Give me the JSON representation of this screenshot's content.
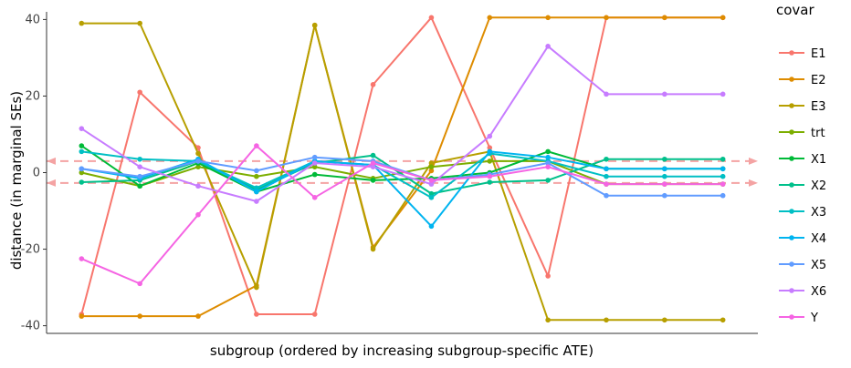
{
  "chart_data": {
    "type": "line",
    "xlabel": "subgroup (ordered by increasing subgroup-specific ATE)",
    "ylabel": "distance (in marginal SEs)",
    "x": [
      1,
      2,
      3,
      4,
      5,
      6,
      7,
      8,
      9,
      10,
      11,
      12
    ],
    "ylim": [
      -42,
      42
    ],
    "yticks": [
      -40,
      -20,
      0,
      20,
      40
    ],
    "grid": false,
    "reference_lines": [
      3,
      -2.7
    ],
    "reference_line_color": "#f4a3a3",
    "legend_title": "covar",
    "legend_position": "right",
    "series": [
      {
        "name": "E1",
        "color": "#F8766D",
        "values": [
          -37,
          21,
          6.5,
          -37,
          -37,
          23,
          40.5,
          6.5,
          -27,
          40.5,
          40.5,
          40.5
        ]
      },
      {
        "name": "E2",
        "color": "#DE8C00",
        "values": [
          -37.5,
          -37.5,
          -37.5,
          -29.5,
          38.5,
          -19.5,
          0.5,
          40.5,
          40.5,
          40.5,
          40.5,
          40.5
        ]
      },
      {
        "name": "E3",
        "color": "#B79F00",
        "values": [
          39,
          39,
          5,
          -30,
          38.5,
          -20,
          2.5,
          5.5,
          -38.5,
          -38.5,
          -38.5,
          -38.5
        ]
      },
      {
        "name": "trt",
        "color": "#7CAE00",
        "values": [
          0,
          -3.5,
          1.5,
          -1,
          1.5,
          -1.5,
          1.5,
          3,
          3,
          -3,
          -3,
          -3
        ]
      },
      {
        "name": "X1",
        "color": "#00BA38",
        "values": [
          7,
          -3.5,
          2.5,
          -5,
          -0.5,
          -2,
          -1.5,
          0,
          5.5,
          1,
          1,
          1
        ]
      },
      {
        "name": "X2",
        "color": "#00C08B",
        "values": [
          -2.5,
          -2,
          3,
          -4.5,
          2.5,
          4.5,
          -5.5,
          -2.5,
          -2,
          3.5,
          3.5,
          3.5
        ]
      },
      {
        "name": "X3",
        "color": "#00BFC4",
        "values": [
          5.5,
          3.5,
          3,
          -4,
          3,
          2,
          -6.5,
          5,
          3,
          -1,
          -1,
          -1
        ]
      },
      {
        "name": "X4",
        "color": "#00B4F0",
        "values": [
          1,
          -1.5,
          3.5,
          -5,
          3,
          2,
          -14,
          5.5,
          4,
          1,
          1,
          1
        ]
      },
      {
        "name": "X5",
        "color": "#619CFF",
        "values": [
          1,
          -1,
          3,
          0.5,
          4,
          3,
          -2,
          -0.5,
          2.5,
          -6,
          -6,
          -6
        ]
      },
      {
        "name": "X6",
        "color": "#C77CFF",
        "values": [
          11.5,
          1.5,
          -3.5,
          -7.5,
          2.5,
          1.5,
          -3,
          9.5,
          33,
          20.5,
          20.5,
          20.5
        ]
      },
      {
        "name": "Y",
        "color": "#F564E3",
        "values": [
          -22.5,
          -29,
          -11,
          7,
          -6.5,
          2.5,
          -2,
          -1,
          1.5,
          -3,
          -3,
          -3
        ]
      }
    ]
  }
}
